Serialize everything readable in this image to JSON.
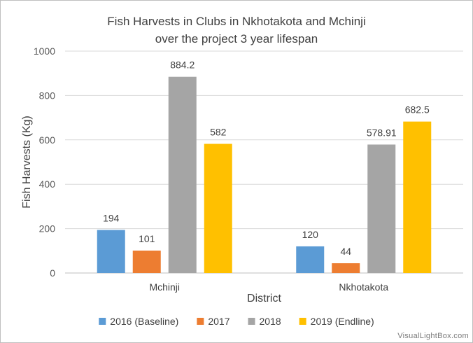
{
  "chart_data": {
    "type": "bar",
    "title_line1": "Fish Harvests in Clubs in Nkhotakota and Mchinji",
    "title_line2": "over the project 3 year lifespan",
    "xlabel": "District",
    "ylabel": "Fish Harvests (Kg)",
    "ylim": [
      0,
      1000
    ],
    "yticks": [
      0,
      200,
      400,
      600,
      800,
      1000
    ],
    "categories": [
      "Mchinji",
      "Nkhotakota"
    ],
    "series": [
      {
        "name": "2016 (Baseline)",
        "color": "#5b9bd5",
        "values": [
          194,
          120
        ],
        "labels": [
          "194",
          "120"
        ]
      },
      {
        "name": "2017",
        "color": "#ed7d31",
        "values": [
          101,
          44
        ],
        "labels": [
          "101",
          "44"
        ]
      },
      {
        "name": "2018",
        "color": "#a5a5a5",
        "values": [
          884.2,
          578.91
        ],
        "labels": [
          "884.2",
          "578.91"
        ]
      },
      {
        "name": "2019 (Endline)",
        "color": "#ffc000",
        "values": [
          582,
          682.5
        ],
        "labels": [
          "582",
          "682.5"
        ]
      }
    ],
    "grid": true,
    "legend": "bottom"
  },
  "watermark": "VisualLightBox.com"
}
